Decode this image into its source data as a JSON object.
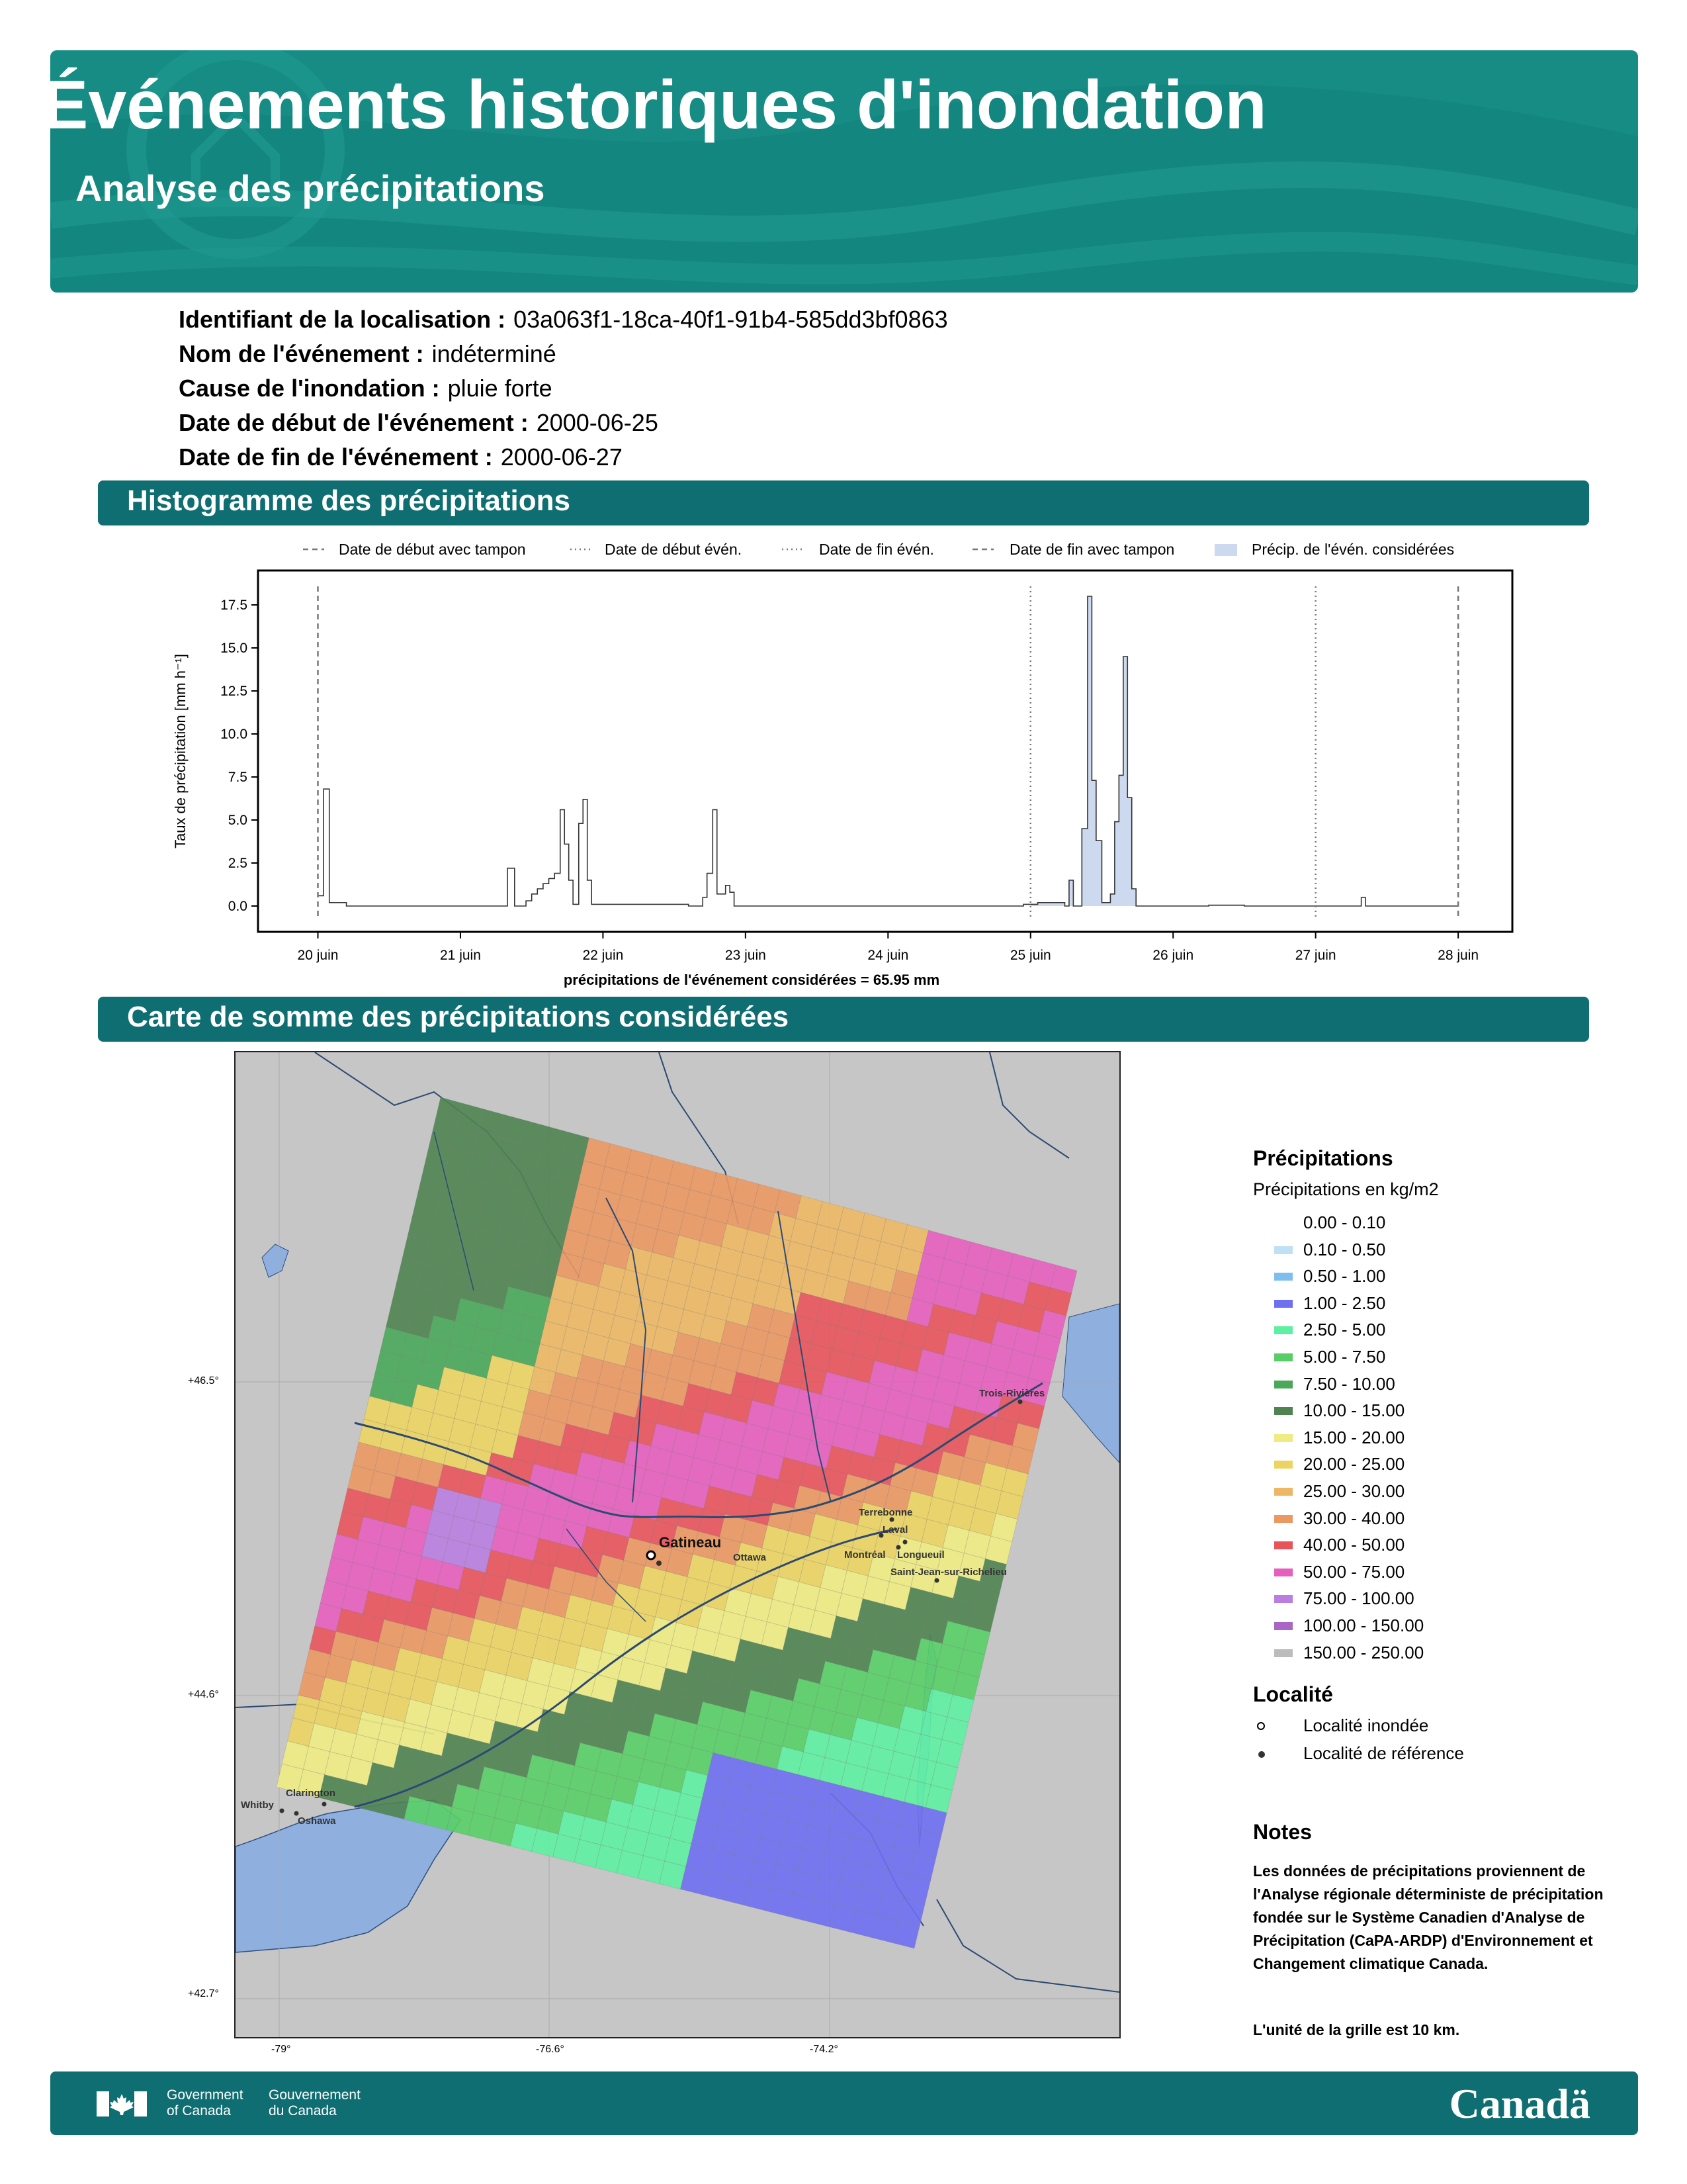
{
  "header": {
    "title": "Événements historiques d'inondation",
    "subtitle": "Analyse des précipitations"
  },
  "info": [
    {
      "label": "Identifiant de la localisation :",
      "value": "03a063f1-18ca-40f1-91b4-585dd3bf0863"
    },
    {
      "label": "Nom de l'événement :",
      "value": "indéterminé"
    },
    {
      "label": "Cause de l'inondation :",
      "value": "pluie forte"
    },
    {
      "label": "Date de début de l'événement :",
      "value": "2000-06-25"
    },
    {
      "label": "Date de fin de l'événement :",
      "value": "2000-06-27"
    }
  ],
  "sections": {
    "histogram": "Histogramme des précipitations",
    "map": "Carte de somme des précipitations considérées"
  },
  "chart_data": {
    "type": "bar",
    "ylabel": "Taux de précipitation [mm h⁻¹]",
    "xlabel": "précipitations de l'événement considérées = 65.95 mm",
    "y_ticks": [
      "0.0",
      "2.5",
      "5.0",
      "7.5",
      "10.0",
      "12.5",
      "15.0",
      "17.5"
    ],
    "ylim": [
      -1.5,
      19.5
    ],
    "x_ticks": [
      "20 juin",
      "21 juin",
      "22 juin",
      "23 juin",
      "24 juin",
      "25 juin",
      "26 juin",
      "27 juin",
      "28 juin"
    ],
    "x_unit": "days after 2000-06-20 00:00",
    "xlim": [
      -0.42,
      8.38
    ],
    "legend": [
      {
        "label": "Date de début avec tampon",
        "style": "dashed"
      },
      {
        "label": "Date de début évén.",
        "style": "dotted"
      },
      {
        "label": "Date de fin évén.",
        "style": "dotted"
      },
      {
        "label": "Date de fin avec tampon",
        "style": "dashed"
      },
      {
        "label": "Précip. de l'évén. considérées",
        "style": "patch"
      }
    ],
    "vlines": [
      {
        "x": 0.0,
        "style": "dashed"
      },
      {
        "x": 5.0,
        "style": "dotted"
      },
      {
        "x": 7.0,
        "style": "dotted"
      },
      {
        "x": 8.0,
        "style": "dashed"
      }
    ],
    "considered_range": [
      5.0,
      7.0
    ],
    "step_points": [
      [
        0,
        0.6
      ],
      [
        0.04,
        6.8
      ],
      [
        0.08,
        0.2
      ],
      [
        0.2,
        0.0
      ],
      [
        1.3,
        0.0
      ],
      [
        1.33,
        2.2
      ],
      [
        1.38,
        0.0
      ],
      [
        1.46,
        0.3
      ],
      [
        1.5,
        0.7
      ],
      [
        1.54,
        1.0
      ],
      [
        1.58,
        1.3
      ],
      [
        1.62,
        1.6
      ],
      [
        1.66,
        1.9
      ],
      [
        1.7,
        5.6
      ],
      [
        1.73,
        3.6
      ],
      [
        1.76,
        1.5
      ],
      [
        1.79,
        0.1
      ],
      [
        1.83,
        4.8
      ],
      [
        1.86,
        6.2
      ],
      [
        1.89,
        1.5
      ],
      [
        1.92,
        0.1
      ],
      [
        2.6,
        0.0
      ],
      [
        2.7,
        0.5
      ],
      [
        2.73,
        1.9
      ],
      [
        2.77,
        5.6
      ],
      [
        2.8,
        0.7
      ],
      [
        2.86,
        1.2
      ],
      [
        2.89,
        0.8
      ],
      [
        2.92,
        0.0
      ],
      [
        4.8,
        0.0
      ],
      [
        4.95,
        0.1
      ],
      [
        5.05,
        0.2
      ],
      [
        5.24,
        0.0
      ],
      [
        5.27,
        1.5
      ],
      [
        5.3,
        0.0
      ],
      [
        5.36,
        4.5
      ],
      [
        5.4,
        18.0
      ],
      [
        5.43,
        7.3
      ],
      [
        5.46,
        3.8
      ],
      [
        5.5,
        0.2
      ],
      [
        5.56,
        0.7
      ],
      [
        5.59,
        4.9
      ],
      [
        5.62,
        7.6
      ],
      [
        5.65,
        14.5
      ],
      [
        5.68,
        6.3
      ],
      [
        5.71,
        1.0
      ],
      [
        5.74,
        0.0
      ],
      [
        6.25,
        0.05
      ],
      [
        6.5,
        0.0
      ],
      [
        7.32,
        0.5
      ],
      [
        7.35,
        0.0
      ],
      [
        8.0,
        0.0
      ]
    ]
  },
  "map": {
    "lon_labels": [
      "-79°",
      "-76.6°",
      "-74.2°"
    ],
    "lat_labels": [
      "+46.5°",
      "+44.6°",
      "+42.7°"
    ],
    "cities": [
      {
        "name": "Gatineau",
        "type": "flooded"
      },
      {
        "name": "Ottawa",
        "type": "reference"
      },
      {
        "name": "Terrebonne",
        "type": "reference"
      },
      {
        "name": "Laval",
        "type": "reference"
      },
      {
        "name": "Montréal",
        "type": "reference"
      },
      {
        "name": "Longueuil",
        "type": "reference"
      },
      {
        "name": "Saint-Jean-sur-Richelieu",
        "type": "reference"
      },
      {
        "name": "Trois-Rivières",
        "type": "reference"
      },
      {
        "name": "Clarington",
        "type": "reference"
      },
      {
        "name": "Whitby",
        "type": "reference"
      },
      {
        "name": "Oshawa",
        "type": "reference"
      }
    ]
  },
  "legend": {
    "title": "Précipitations",
    "subtitle": "Précipitations en kg/m2",
    "classes": [
      {
        "label": "0.00 - 0.10",
        "color": "#ffffff"
      },
      {
        "label": "0.10 - 0.50",
        "color": "#bfe1f2"
      },
      {
        "label": "0.50 - 1.00",
        "color": "#7fbff0"
      },
      {
        "label": "1.00 - 2.50",
        "color": "#6f6ff2"
      },
      {
        "label": "2.50 - 5.00",
        "color": "#5ef0a2"
      },
      {
        "label": "5.00 - 7.50",
        "color": "#58cf66"
      },
      {
        "label": "7.50 - 10.00",
        "color": "#4aa85a"
      },
      {
        "label": "10.00 - 15.00",
        "color": "#4f8451"
      },
      {
        "label": "15.00 - 20.00",
        "color": "#eeec82"
      },
      {
        "label": "20.00 - 25.00",
        "color": "#ecd463"
      },
      {
        "label": "25.00 - 30.00",
        "color": "#edb865"
      },
      {
        "label": "30.00 - 40.00",
        "color": "#eb9863"
      },
      {
        "label": "40.00 - 50.00",
        "color": "#e8545c"
      },
      {
        "label": "50.00 - 75.00",
        "color": "#e55fbd"
      },
      {
        "label": "75.00 - 100.00",
        "color": "#b97ee0"
      },
      {
        "label": "100.00 - 150.00",
        "color": "#a866c6"
      },
      {
        "label": "150.00 - 250.00",
        "color": "#bcbcbc"
      }
    ],
    "locality_title": "Localité",
    "localities": [
      {
        "label": "Localité inondée",
        "marker": "hollow"
      },
      {
        "label": "Localité de référence",
        "marker": "filled"
      }
    ]
  },
  "notes": {
    "title": "Notes",
    "text": "Les données de précipitations proviennent de l'Analyse régionale déterministe de précipitation fondée sur le Système Canadien d'Analyse de Précipitation (CaPA-ARDP) d'Environnement et Changement climatique Canada.",
    "grid_unit": "L'unité de la grille est 10 km."
  },
  "footer": {
    "gov_en": "Government of Canada",
    "gov_fr": "Gouvernement du Canada",
    "wordmark": "Canadä"
  }
}
